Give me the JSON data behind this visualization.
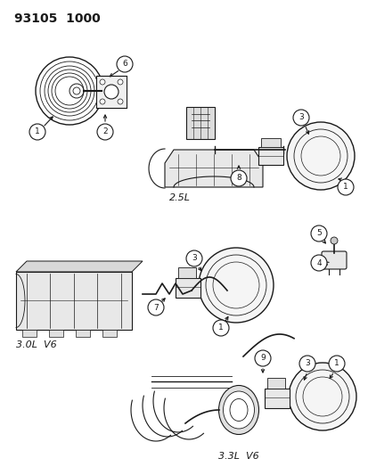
{
  "background_color": "#ffffff",
  "line_color": "#1a1a1a",
  "fig_width": 4.14,
  "fig_height": 5.33,
  "dpi": 100,
  "header": "93105  1000",
  "label_2_5L": "2.5L",
  "label_3_0L": "3.0L  V6",
  "label_3_3L": "3.3L  V6",
  "header_fontsize": 10,
  "label_fontsize": 8
}
